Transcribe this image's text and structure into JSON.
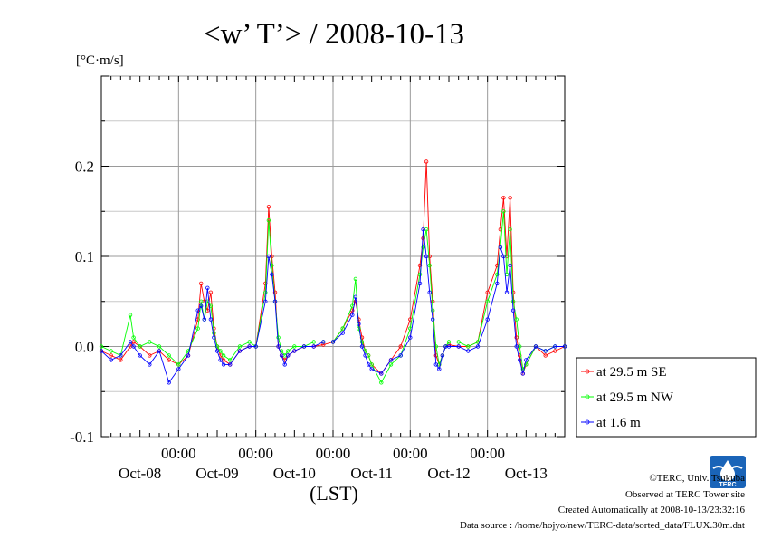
{
  "chart_data": {
    "type": "line",
    "title": "<w’ T’> / 2008-10-13",
    "unit_label": "[°C·m/s]",
    "xlabel": "(LST)",
    "ylim": [
      -0.1,
      0.3
    ],
    "y_ticks": [
      -0.1,
      0.0,
      0.1,
      0.2
    ],
    "y_tick_labels": [
      "-0.1",
      "0.0",
      "0.1",
      "0.2"
    ],
    "x_range_hours": [
      0,
      144
    ],
    "x_ticks": [
      {
        "hour": 24,
        "time": "00:00",
        "day": "Oct-09"
      },
      {
        "hour": 48,
        "time": "00:00",
        "day": "Oct-10"
      },
      {
        "hour": 72,
        "time": "00:00",
        "day": "Oct-11"
      },
      {
        "hour": 96,
        "time": "00:00",
        "day": "Oct-12"
      },
      {
        "hour": 120,
        "time": "00:00",
        "day": "Oct-13"
      }
    ],
    "day_labels": [
      {
        "hour": 12,
        "label": "Oct-08"
      },
      {
        "hour": 36,
        "label": "Oct-09"
      },
      {
        "hour": 60,
        "label": "Oct-10"
      },
      {
        "hour": 84,
        "label": "Oct-11"
      },
      {
        "hour": 108,
        "label": "Oct-12"
      },
      {
        "hour": 132,
        "label": "Oct-13"
      }
    ],
    "legend": {
      "position": "right",
      "entries": [
        "at 29.5 m SE",
        "at 29.5 m NW",
        "at 1.6 m"
      ]
    },
    "series": [
      {
        "name": "at 29.5 m SE",
        "color": "#ff0000",
        "hours": [
          0,
          3,
          6,
          9,
          10,
          12,
          15,
          18,
          21,
          24,
          27,
          30,
          31,
          32,
          33,
          34,
          35,
          36,
          37,
          38,
          40,
          43,
          46,
          48,
          51,
          52,
          53,
          54,
          55,
          56,
          57,
          58,
          60,
          63,
          66,
          69,
          72,
          75,
          78,
          79,
          80,
          81,
          82,
          83,
          84,
          87,
          90,
          93,
          96,
          99,
          100,
          101,
          102,
          103,
          104,
          105,
          106,
          107,
          108,
          111,
          114,
          117,
          120,
          123,
          124,
          125,
          126,
          127,
          128,
          129,
          130,
          131,
          132,
          135,
          138,
          141,
          144
        ],
        "values": [
          -0.005,
          -0.01,
          -0.015,
          0.0,
          0.005,
          0.0,
          -0.01,
          -0.005,
          -0.015,
          -0.02,
          -0.01,
          0.03,
          0.07,
          0.05,
          0.04,
          0.06,
          0.02,
          0.0,
          -0.01,
          -0.015,
          -0.02,
          -0.005,
          0.0,
          0.0,
          0.07,
          0.155,
          0.1,
          0.06,
          0.0,
          -0.01,
          -0.015,
          -0.01,
          -0.005,
          0.0,
          0.0,
          0.002,
          0.005,
          0.02,
          0.04,
          0.05,
          0.03,
          0.01,
          -0.005,
          -0.01,
          -0.02,
          -0.03,
          -0.015,
          0.0,
          0.03,
          0.09,
          0.12,
          0.205,
          0.1,
          0.05,
          -0.01,
          -0.02,
          -0.01,
          0.0,
          0.002,
          0.0,
          0.0,
          0.005,
          0.06,
          0.09,
          0.13,
          0.165,
          0.1,
          0.165,
          0.06,
          0.01,
          -0.01,
          -0.03,
          -0.02,
          0.0,
          -0.01,
          -0.005,
          0.0
        ]
      },
      {
        "name": "at 29.5 m NW",
        "color": "#00ff00",
        "hours": [
          0,
          3,
          6,
          9,
          10,
          12,
          15,
          18,
          21,
          24,
          27,
          30,
          31,
          32,
          33,
          34,
          35,
          36,
          37,
          38,
          40,
          43,
          46,
          48,
          51,
          52,
          53,
          54,
          55,
          56,
          57,
          58,
          60,
          63,
          66,
          69,
          72,
          75,
          78,
          79,
          80,
          81,
          82,
          83,
          84,
          87,
          90,
          93,
          96,
          99,
          100,
          101,
          102,
          103,
          104,
          105,
          106,
          107,
          108,
          111,
          114,
          117,
          120,
          123,
          124,
          125,
          126,
          127,
          128,
          129,
          130,
          131,
          132,
          135,
          138,
          141,
          144
        ],
        "values": [
          0.0,
          -0.005,
          -0.01,
          0.035,
          0.01,
          0.0,
          0.005,
          0.0,
          -0.01,
          -0.02,
          -0.005,
          0.02,
          0.05,
          0.03,
          0.05,
          0.045,
          0.015,
          0.0,
          -0.005,
          -0.01,
          -0.015,
          0.0,
          0.005,
          0.0,
          0.06,
          0.14,
          0.09,
          0.05,
          0.01,
          -0.005,
          -0.01,
          -0.005,
          0.0,
          0.0,
          0.005,
          0.005,
          0.005,
          0.02,
          0.045,
          0.075,
          0.02,
          0.005,
          -0.005,
          -0.01,
          -0.02,
          -0.04,
          -0.02,
          -0.01,
          0.02,
          0.08,
          0.11,
          0.13,
          0.09,
          0.04,
          0.0,
          -0.02,
          -0.01,
          0.0,
          0.005,
          0.005,
          0.0,
          0.005,
          0.05,
          0.08,
          0.11,
          0.15,
          0.08,
          0.13,
          0.05,
          0.03,
          0.0,
          -0.025,
          -0.02,
          0.0,
          -0.005,
          0.0,
          0.0
        ]
      },
      {
        "name": "at 1.6 m",
        "color": "#0000ff",
        "hours": [
          0,
          3,
          6,
          9,
          10,
          12,
          15,
          18,
          21,
          24,
          27,
          30,
          31,
          32,
          33,
          34,
          35,
          36,
          37,
          38,
          40,
          43,
          46,
          48,
          51,
          52,
          53,
          54,
          55,
          56,
          57,
          58,
          60,
          63,
          66,
          69,
          72,
          75,
          78,
          79,
          80,
          81,
          82,
          83,
          84,
          87,
          90,
          93,
          96,
          99,
          100,
          101,
          102,
          103,
          104,
          105,
          106,
          107,
          108,
          111,
          114,
          117,
          120,
          123,
          124,
          125,
          126,
          127,
          128,
          129,
          130,
          131,
          132,
          135,
          138,
          141,
          144
        ],
        "values": [
          -0.005,
          -0.015,
          -0.01,
          0.005,
          0.0,
          -0.01,
          -0.02,
          -0.005,
          -0.04,
          -0.025,
          -0.01,
          0.04,
          0.045,
          0.03,
          0.065,
          0.03,
          0.01,
          -0.005,
          -0.015,
          -0.02,
          -0.02,
          -0.005,
          0.0,
          0.0,
          0.05,
          0.1,
          0.08,
          0.05,
          0.0,
          -0.01,
          -0.02,
          -0.01,
          -0.005,
          0.0,
          0.0,
          0.005,
          0.005,
          0.015,
          0.035,
          0.055,
          0.025,
          0.0,
          -0.01,
          -0.02,
          -0.025,
          -0.03,
          -0.015,
          -0.01,
          0.01,
          0.07,
          0.13,
          0.1,
          0.06,
          0.03,
          -0.02,
          -0.025,
          -0.01,
          0.0,
          0.0,
          0.0,
          -0.005,
          0.0,
          0.03,
          0.07,
          0.11,
          0.1,
          0.06,
          0.09,
          0.04,
          0.0,
          -0.015,
          -0.03,
          -0.015,
          0.0,
          -0.005,
          0.0,
          0.0
        ]
      }
    ]
  },
  "footer": {
    "copyright": "©TERC, Univ. Tsukuba",
    "site": "Observed at TERC Tower site",
    "created": "Created Automatically at 2008-10-13/23:32:16",
    "source": "Data source : /home/hojyo/new/TERC-data/sorted_data/FLUX.30m.dat",
    "logo_text": "TERC"
  }
}
